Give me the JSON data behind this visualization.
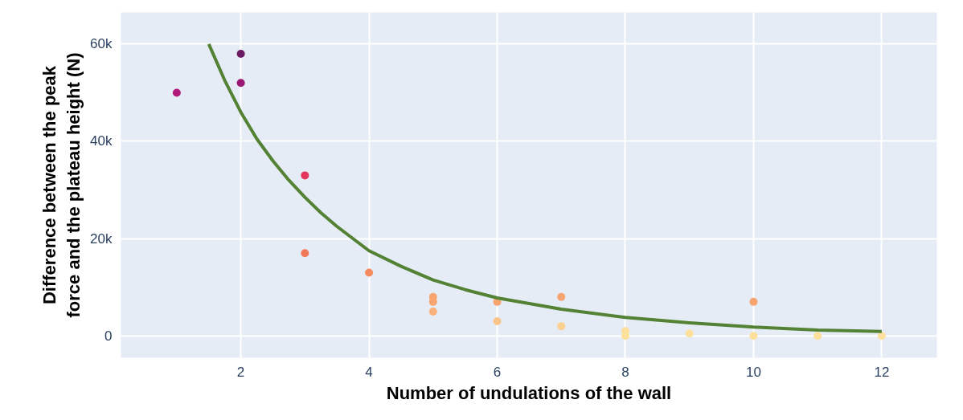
{
  "chart_data": {
    "type": "scatter",
    "xlabel": "Number of undulations of the wall",
    "ylabel": "Difference between the peak force and the plateau height (N)",
    "xlim": [
      0.13,
      12.86
    ],
    "ylim": [
      -4500,
      66500
    ],
    "xticks": [
      2,
      4,
      6,
      8,
      10,
      12
    ],
    "yticks": [
      0,
      {
        "value": 20000,
        "label": "20k"
      },
      {
        "value": 40000,
        "label": "40k"
      },
      {
        "value": 60000,
        "label": "60k"
      }
    ],
    "grid": true,
    "series": [
      {
        "marker": "circle",
        "x": [
          1,
          2,
          2,
          3,
          3,
          4,
          5,
          5,
          5,
          6,
          6,
          7,
          7,
          8,
          8,
          9,
          10,
          10,
          11,
          12
        ],
        "values": [
          50000,
          58000,
          52000,
          33000,
          17000,
          13000,
          8000,
          7000,
          5000,
          7000,
          3000,
          8000,
          2000,
          1000,
          0,
          500,
          7000,
          0,
          0,
          0
        ],
        "colors": [
          "#b0197a",
          "#6e1a63",
          "#9c1773",
          "#e2365c",
          "#f2785a",
          "#f58a5e",
          "#f8a470",
          "#f8a470",
          "#f9b07a",
          "#f8a470",
          "#fbc488",
          "#f8a470",
          "#fcd08f",
          "#fde09c",
          "#fde09c",
          "#fde09c",
          "#f8a470",
          "#fde09c",
          "#fde09c",
          "#fde09c"
        ]
      },
      {
        "type": "line",
        "color": "#548235",
        "line_style": "solid",
        "x": [
          1.5,
          1.75,
          2,
          2.25,
          2.5,
          2.75,
          3,
          3.25,
          3.5,
          4,
          4.5,
          5,
          5.5,
          6,
          7,
          8,
          9,
          10,
          11,
          12
        ],
        "values": [
          60000,
          52500,
          46000,
          40500,
          36000,
          32000,
          28500,
          25300,
          22500,
          17500,
          14300,
          11500,
          9500,
          7800,
          5500,
          3800,
          2700,
          1800,
          1200,
          900
        ]
      }
    ]
  }
}
